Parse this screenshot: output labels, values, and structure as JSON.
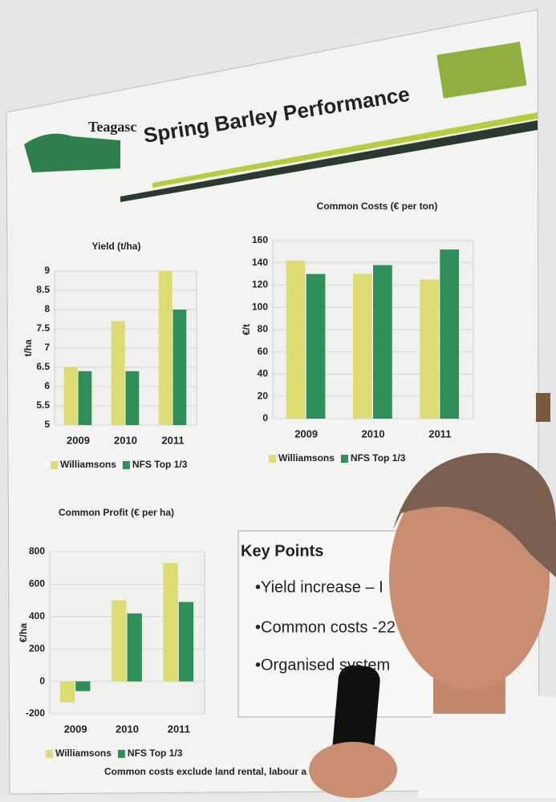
{
  "poster": {
    "logo": "Teagasc",
    "title": "Spring Barley Performance",
    "key_points": {
      "heading": "Key Points",
      "items": [
        "•Yield increase – I",
        "•Common costs -22",
        "•Organised system"
      ]
    },
    "footnote": "Common costs exclude land rental, labour a"
  },
  "chart_data": [
    {
      "type": "bar",
      "title": "Yield (t/ha)",
      "y_label": "t/ha",
      "categories": [
        "2009",
        "2010",
        "2011"
      ],
      "series": [
        {
          "name": "Williamsons",
          "color": "#dcdc72",
          "values": [
            6.5,
            7.7,
            9.0
          ]
        },
        {
          "name": "NFS Top 1/3",
          "color": "#2f8f5a",
          "values": [
            6.4,
            6.4,
            8.0
          ]
        }
      ],
      "ylim": [
        5,
        9
      ],
      "yticks": [
        5,
        5.5,
        6,
        6.5,
        7,
        7.5,
        8,
        8.5,
        9
      ],
      "grid": true
    },
    {
      "type": "bar",
      "title": "Common Costs (€ per ton)",
      "y_label": "€/t",
      "categories": [
        "2009",
        "2010",
        "2011"
      ],
      "series": [
        {
          "name": "Williamsons",
          "color": "#dcdc72",
          "values": [
            142,
            130,
            125
          ]
        },
        {
          "name": "NFS Top 1/3",
          "color": "#2f8f5a",
          "values": [
            130,
            138,
            152
          ]
        }
      ],
      "ylim": [
        0,
        160
      ],
      "yticks": [
        0,
        20,
        40,
        60,
        80,
        100,
        120,
        140,
        160
      ],
      "grid": true
    },
    {
      "type": "bar",
      "title": "Common Profit (€ per ha)",
      "y_label": "€/ha",
      "categories": [
        "2009",
        "2010",
        "2011"
      ],
      "series": [
        {
          "name": "Williamsons",
          "color": "#dcdc72",
          "values": [
            -130,
            500,
            730
          ]
        },
        {
          "name": "NFS Top 1/3",
          "color": "#2f8f5a",
          "values": [
            -60,
            420,
            490
          ]
        }
      ],
      "ylim": [
        -200,
        800
      ],
      "yticks": [
        -200,
        0,
        200,
        400,
        600,
        800
      ],
      "grid": true
    }
  ]
}
